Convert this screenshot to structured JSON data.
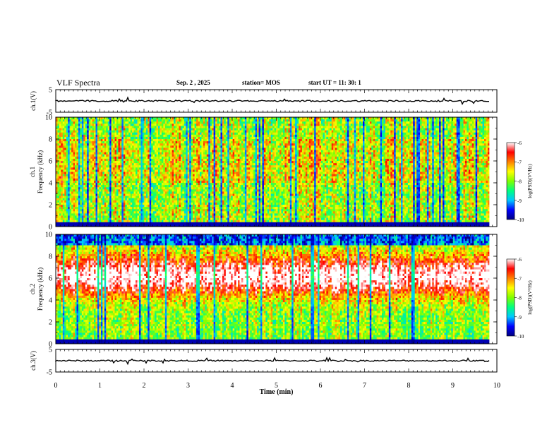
{
  "header": {
    "title": "VLF Spectra",
    "date": "Sep. 2 , 2025",
    "station_label": "station= MOS",
    "start_label": "start UT = 11: 30: 1"
  },
  "chart_data": {
    "type": "heatmap",
    "x_axis": {
      "label": "Time (min)",
      "range": [
        0,
        10
      ],
      "ticks": [
        0,
        1,
        2,
        3,
        4,
        5,
        6,
        7,
        8,
        9,
        10
      ],
      "data_end": 9.83
    },
    "panels": [
      {
        "name": "ch.1(V)",
        "kind": "waveform",
        "ylim": [
          -5,
          5
        ],
        "yticks": [
          5,
          -5
        ],
        "baseline": 0
      },
      {
        "name": "ch.1",
        "kind": "spectrogram",
        "ylabel": "Frequency (kHz)",
        "ylim": [
          0,
          10
        ],
        "yticks": [
          0,
          2,
          4,
          6,
          8,
          10
        ],
        "colorbar": {
          "label": "log(PSD)(V²/Hz)",
          "range": [
            -10,
            -6
          ],
          "ticks": [
            -6,
            -7,
            -8,
            -9,
            -10
          ]
        }
      },
      {
        "name": "ch.2",
        "kind": "spectrogram",
        "ylabel": "Frequency (kHz)",
        "ylim": [
          0,
          10
        ],
        "yticks": [
          0,
          2,
          4,
          6,
          8,
          10
        ],
        "colorbar": {
          "label": "log(PSD)(V²/Hz)",
          "range": [
            -10,
            -6
          ],
          "ticks": [
            -6,
            -7,
            -8,
            -9,
            -10
          ]
        }
      },
      {
        "name": "ch.3(V)",
        "kind": "waveform",
        "ylim": [
          -5,
          5
        ],
        "yticks": [
          5,
          -5
        ],
        "baseline": 0
      }
    ],
    "colormap": [
      "#000080",
      "#0000ff",
      "#00c8ff",
      "#00ff80",
      "#80ff00",
      "#ffff00",
      "#ff8000",
      "#ff0000",
      "#ffffff"
    ]
  }
}
